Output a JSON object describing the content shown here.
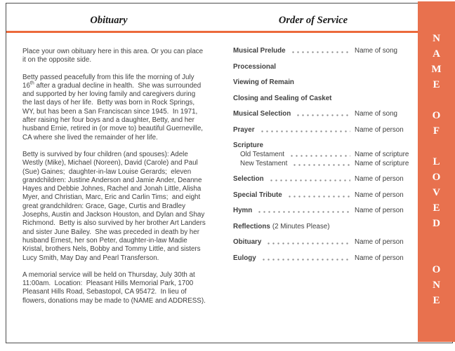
{
  "colors": {
    "accent_rule": "#EC6A3C",
    "sidebar_bg": "#E8714E",
    "sidebar_letters": "#FFFFFF",
    "page_border": "#4D4D4D",
    "body_text": "#404040",
    "leader_dots": "#909090"
  },
  "headers": {
    "left": "Obituary",
    "right": "Order of Service"
  },
  "sidebar": {
    "text": "NAME OF LOVED ONE"
  },
  "obituary": {
    "placeholder": "Place your own obituary here in this area. Or you can place it on the opposite side.",
    "para_life": {
      "before_sup": "Betty passed peacefully from this life the morning of July 16",
      "sup": "th",
      "after_sup": " after a gradual decline in health.  She was surrounded and supported by her loving family and caregivers during the last days of her life.  Betty was born in Rock Springs, WY, but has been a San Franciscan since 1945.  In 1971, after raising her four boys and a daughter, Betty, and her husband Ernie, retired in (or move to) beautiful Guerneville, CA where she lived the remainder of her life."
    },
    "para_family": "Betty is survived by four children (and spouses): Adele Westly (Mike), Michael (Noreen), David (Carole) and Paul (Sue) Gaines;  daughter-in-law Louise Gerards;  eleven grandchildren: Justine Anderson and Jamie Ander, Deanne Hayes and Debbie Johnes, Rachel and Jonah Little, Alisha Myer, and Christian, Marc, Eric and Carlin Tims;  and eight great grandchildren: Grace, Gage, Curtis and Bradley Josephs, Austin and Jackson Houston, and Dylan and Shay Richmond.  Betty is also survived by her brother Art Landers and sister June Bailey.  She was preceded in death by her husband Ernest, her son Peter, daughter-in-law Madie Kristal, brothers Nels, Bobby and Tommy Little, and sisters Lucy Smith, May Day and Pearl Transferson.",
    "para_service": "A memorial service will be held on Thursday, July 30th at 11:00am.  Location:  Pleasant Hills Memorial Park, 1700 Pleasant Hills Road, Sebastopol, CA 95472.  In lieu of flowers, donations may be made to (NAME and ADDRESS)."
  },
  "order_of_service": {
    "items": [
      {
        "label": "Musical Prelude",
        "value": "Name of song"
      },
      {
        "label": "Processional"
      },
      {
        "label": "Viewing of Remain"
      },
      {
        "label": "Closing and Sealing of Casket"
      },
      {
        "label": "Musical Selection",
        "value": "Name of song"
      },
      {
        "label": "Prayer",
        "value": "Name of person"
      },
      {
        "label": "Scripture",
        "sub": [
          {
            "label": "Old Testament",
            "value": "Name of scripture"
          },
          {
            "label": "New Testament",
            "value": "Name of scripture"
          }
        ]
      },
      {
        "label": "Selection",
        "value": "Name of person"
      },
      {
        "label": "Special Tribute",
        "value": "Name of person"
      },
      {
        "label": "Hymn",
        "value": "Name of person"
      },
      {
        "label": "Reflections",
        "note": "(2 Minutes Please)"
      },
      {
        "label": "Obituary",
        "value": "Name of person"
      },
      {
        "label": "Eulogy",
        "value": "Name of person"
      }
    ]
  }
}
